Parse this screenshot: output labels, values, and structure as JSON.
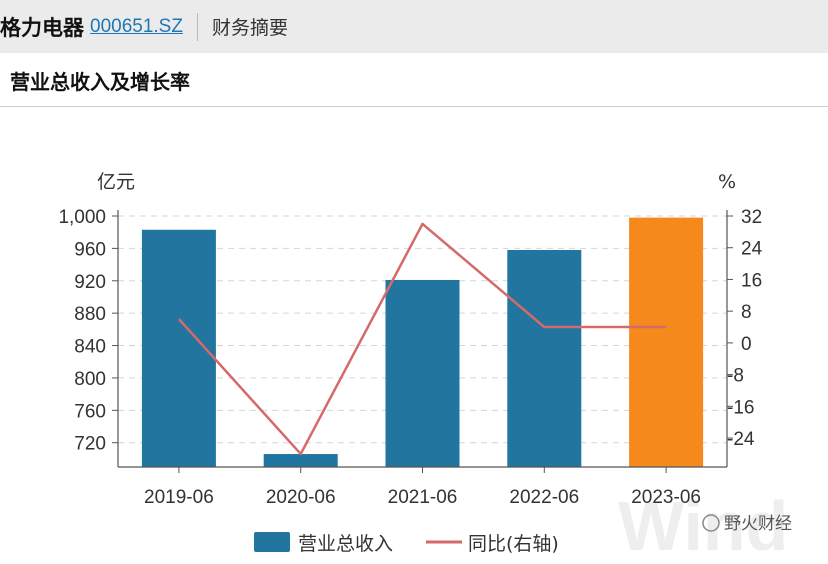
{
  "header": {
    "company": "格力电器",
    "code": "000651.SZ",
    "nav": "财务摘要"
  },
  "section_title": "营业总收入及增长率",
  "chart_data": {
    "type": "bar",
    "categories": [
      "2019-06",
      "2020-06",
      "2021-06",
      "2022-06",
      "2023-06"
    ],
    "series": [
      {
        "name": "营业总收入",
        "type": "bar",
        "axis": "left",
        "values": [
          983,
          706,
          921,
          958,
          998
        ]
      },
      {
        "name": "同比(右轴)",
        "type": "line",
        "axis": "right",
        "values": [
          6,
          -28,
          30,
          4,
          4
        ]
      }
    ],
    "y_left": {
      "unit": "亿元",
      "ticks": [
        "720",
        "760",
        "800",
        "840",
        "880",
        "920",
        "960",
        "1,000"
      ],
      "tick_values": [
        720,
        760,
        800,
        840,
        880,
        920,
        960,
        1000
      ],
      "range": [
        690,
        1000
      ]
    },
    "y_right": {
      "unit": "%",
      "ticks": [
        "-24",
        "-16",
        "-8",
        "0",
        "8",
        "16",
        "24",
        "32"
      ],
      "tick_values": [
        -24,
        -16,
        -8,
        0,
        8,
        16,
        24,
        32
      ],
      "range": [
        -31.3,
        32
      ]
    },
    "bar_colors": [
      "#21759f",
      "#21759f",
      "#21759f",
      "#21759f",
      "#f5891b"
    ],
    "line_color": "#d46a6a",
    "grid": true,
    "legend_position": "bottom"
  },
  "watermark": {
    "logo_text": "Wind",
    "account": "野火财经"
  }
}
